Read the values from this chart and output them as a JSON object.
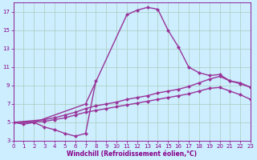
{
  "xlabel": "Windchill (Refroidissement éolien,°C)",
  "bg_color": "#cceeff",
  "grid_color": "#aaccbb",
  "line_color": "#993399",
  "xlim": [
    0,
    23
  ],
  "ylim": [
    3,
    18
  ],
  "xticks": [
    0,
    1,
    2,
    3,
    4,
    5,
    6,
    7,
    8,
    9,
    10,
    11,
    12,
    13,
    14,
    15,
    16,
    17,
    18,
    19,
    20,
    21,
    22,
    23
  ],
  "yticks": [
    3,
    5,
    7,
    9,
    11,
    13,
    15,
    17
  ],
  "series1_x": [
    0,
    1,
    2,
    3,
    4,
    5,
    6,
    7,
    8
  ],
  "series1_y": [
    5.0,
    4.8,
    5.0,
    4.5,
    4.2,
    3.8,
    3.5,
    3.8,
    9.5
  ],
  "series2_x": [
    0,
    2,
    7,
    11,
    12,
    13,
    14,
    15,
    16,
    17,
    18,
    19,
    20,
    21,
    22,
    23
  ],
  "series2_y": [
    5.0,
    5.0,
    7.0,
    16.7,
    17.2,
    17.5,
    17.3,
    15.0,
    13.2,
    11.0,
    10.4,
    10.1,
    10.2,
    9.5,
    9.3,
    8.8
  ],
  "series3_x": [
    0,
    3,
    4,
    5,
    6,
    7,
    8,
    9,
    10,
    11,
    12,
    13,
    14,
    15,
    16,
    17,
    18,
    19,
    20,
    21,
    22,
    23
  ],
  "series3_y": [
    5.0,
    5.3,
    5.5,
    5.8,
    6.1,
    6.5,
    6.8,
    7.0,
    7.2,
    7.5,
    7.7,
    7.9,
    8.2,
    8.4,
    8.6,
    8.9,
    9.3,
    9.7,
    10.0,
    9.5,
    9.2,
    8.8
  ],
  "series4_x": [
    0,
    3,
    4,
    5,
    6,
    7,
    8,
    9,
    10,
    11,
    12,
    13,
    14,
    15,
    16,
    17,
    18,
    19,
    20,
    21,
    22,
    23
  ],
  "series4_y": [
    5.0,
    5.1,
    5.3,
    5.5,
    5.8,
    6.1,
    6.3,
    6.5,
    6.7,
    6.9,
    7.1,
    7.3,
    7.5,
    7.7,
    7.9,
    8.1,
    8.4,
    8.7,
    8.8,
    8.4,
    8.0,
    7.5
  ],
  "marker": "D",
  "markersize": 2.5,
  "linewidth": 1.0,
  "tick_color": "#880088",
  "spine_color": "#880088",
  "xlabel_fontsize": 5.5,
  "tick_fontsize": 5.0
}
